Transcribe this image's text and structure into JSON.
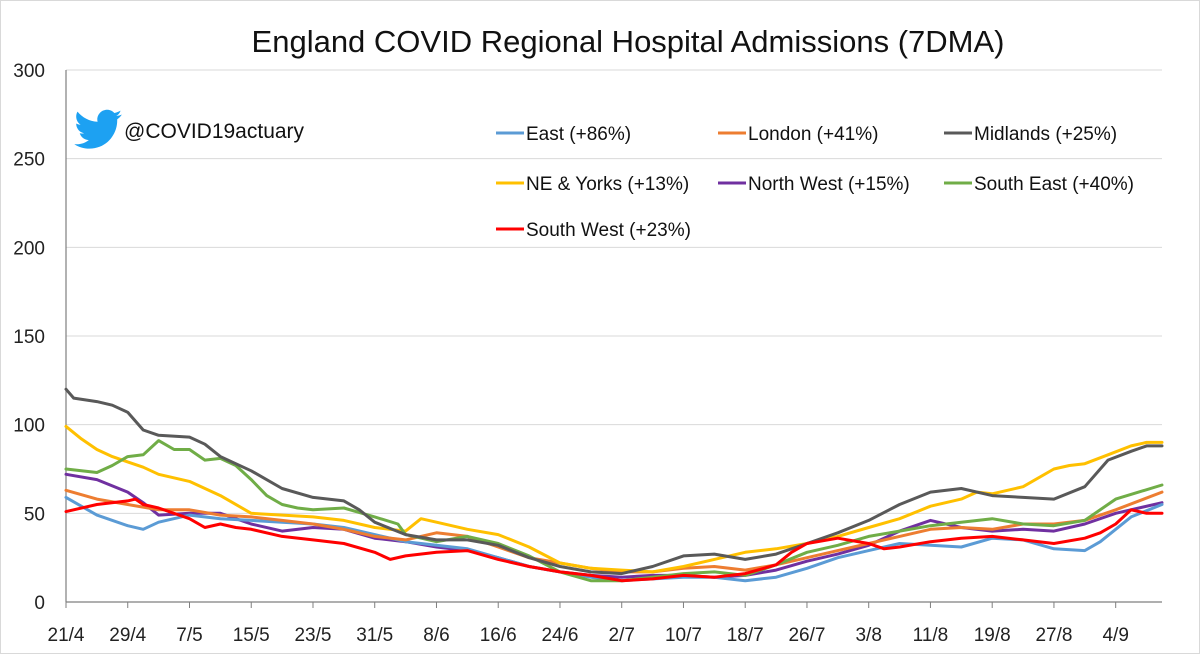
{
  "chart_data": {
    "type": "line",
    "title": "England COVID Regional Hospital Admissions (7DMA)",
    "handle": "@COVID19actuary",
    "icons": {
      "logo": "twitter-bird-icon"
    },
    "xlabel": "",
    "ylabel": "",
    "ylim": [
      0,
      300
    ],
    "yticks": [
      0,
      50,
      100,
      150,
      200,
      250,
      300
    ],
    "grid": true,
    "legend_position": "top-right",
    "x_ticks": [
      "21/4",
      "29/4",
      "7/5",
      "15/5",
      "23/5",
      "31/5",
      "8/6",
      "16/6",
      "24/6",
      "2/7",
      "10/7",
      "18/7",
      "26/7",
      "3/8",
      "11/8",
      "19/8",
      "27/8",
      "4/9"
    ],
    "x_start": "21/4",
    "x_end": "10/9",
    "series": [
      {
        "name": "East (+86%)",
        "color": "#5B9BD5",
        "points": [
          [
            "21/4",
            59
          ],
          [
            "25/4",
            49
          ],
          [
            "29/4",
            43
          ],
          [
            "1/5",
            41
          ],
          [
            "3/5",
            45
          ],
          [
            "7/5",
            49
          ],
          [
            "11/5",
            47
          ],
          [
            "15/5",
            46
          ],
          [
            "19/5",
            45
          ],
          [
            "23/5",
            44
          ],
          [
            "27/5",
            42
          ],
          [
            "31/5",
            38
          ],
          [
            "4/6",
            34
          ],
          [
            "8/6",
            32
          ],
          [
            "12/6",
            30
          ],
          [
            "16/6",
            25
          ],
          [
            "20/6",
            20
          ],
          [
            "24/6",
            17
          ],
          [
            "28/6",
            14
          ],
          [
            "2/7",
            12
          ],
          [
            "6/7",
            13
          ],
          [
            "10/7",
            14
          ],
          [
            "14/7",
            14
          ],
          [
            "18/7",
            12
          ],
          [
            "22/7",
            14
          ],
          [
            "26/7",
            19
          ],
          [
            "30/7",
            25
          ],
          [
            "3/8",
            29
          ],
          [
            "7/8",
            33
          ],
          [
            "11/8",
            32
          ],
          [
            "15/8",
            31
          ],
          [
            "19/8",
            36
          ],
          [
            "23/8",
            35
          ],
          [
            "27/8",
            30
          ],
          [
            "31/8",
            29
          ],
          [
            "2/9",
            34
          ],
          [
            "6/9",
            48
          ],
          [
            "10/9",
            55
          ]
        ]
      },
      {
        "name": "London (+41%)",
        "color": "#ED7D31",
        "points": [
          [
            "21/4",
            63
          ],
          [
            "25/4",
            58
          ],
          [
            "29/4",
            55
          ],
          [
            "3/5",
            52
          ],
          [
            "7/5",
            52
          ],
          [
            "11/5",
            49
          ],
          [
            "15/5",
            48
          ],
          [
            "19/5",
            46
          ],
          [
            "23/5",
            44
          ],
          [
            "27/5",
            41
          ],
          [
            "31/5",
            37
          ],
          [
            "4/6",
            35
          ],
          [
            "8/6",
            39
          ],
          [
            "12/6",
            37
          ],
          [
            "16/6",
            31
          ],
          [
            "20/6",
            25
          ],
          [
            "24/6",
            22
          ],
          [
            "28/6",
            19
          ],
          [
            "2/7",
            17
          ],
          [
            "6/7",
            17
          ],
          [
            "10/7",
            19
          ],
          [
            "14/7",
            20
          ],
          [
            "18/7",
            18
          ],
          [
            "22/7",
            21
          ],
          [
            "26/7",
            25
          ],
          [
            "30/7",
            29
          ],
          [
            "3/8",
            33
          ],
          [
            "7/8",
            37
          ],
          [
            "11/8",
            41
          ],
          [
            "15/8",
            42
          ],
          [
            "19/8",
            41
          ],
          [
            "23/8",
            44
          ],
          [
            "27/8",
            44
          ],
          [
            "31/8",
            46
          ],
          [
            "4/9",
            52
          ],
          [
            "10/9",
            62
          ]
        ]
      },
      {
        "name": "Midlands (+25%)",
        "color": "#595959",
        "points": [
          [
            "21/4",
            120
          ],
          [
            "22/4",
            115
          ],
          [
            "25/4",
            113
          ],
          [
            "27/4",
            111
          ],
          [
            "29/4",
            107
          ],
          [
            "1/5",
            97
          ],
          [
            "3/5",
            94
          ],
          [
            "7/5",
            93
          ],
          [
            "9/5",
            89
          ],
          [
            "11/5",
            82
          ],
          [
            "15/5",
            74
          ],
          [
            "19/5",
            64
          ],
          [
            "23/5",
            59
          ],
          [
            "27/5",
            57
          ],
          [
            "29/5",
            52
          ],
          [
            "31/5",
            45
          ],
          [
            "4/6",
            38
          ],
          [
            "8/6",
            35
          ],
          [
            "12/6",
            35
          ],
          [
            "16/6",
            32
          ],
          [
            "20/6",
            25
          ],
          [
            "24/6",
            20
          ],
          [
            "28/6",
            17
          ],
          [
            "2/7",
            16
          ],
          [
            "6/7",
            20
          ],
          [
            "10/7",
            26
          ],
          [
            "14/7",
            27
          ],
          [
            "18/7",
            24
          ],
          [
            "22/7",
            27
          ],
          [
            "26/7",
            33
          ],
          [
            "30/7",
            39
          ],
          [
            "3/8",
            46
          ],
          [
            "7/8",
            55
          ],
          [
            "11/8",
            62
          ],
          [
            "15/8",
            64
          ],
          [
            "19/8",
            60
          ],
          [
            "23/8",
            59
          ],
          [
            "27/8",
            58
          ],
          [
            "31/8",
            65
          ],
          [
            "3/9",
            80
          ],
          [
            "6/9",
            85
          ],
          [
            "8/9",
            88
          ],
          [
            "10/9",
            88
          ]
        ]
      },
      {
        "name": "NE & Yorks (+13%)",
        "color": "#FFC000",
        "points": [
          [
            "21/4",
            99
          ],
          [
            "23/4",
            92
          ],
          [
            "25/4",
            86
          ],
          [
            "27/4",
            82
          ],
          [
            "29/4",
            79
          ],
          [
            "1/5",
            76
          ],
          [
            "3/5",
            72
          ],
          [
            "7/5",
            68
          ],
          [
            "11/5",
            60
          ],
          [
            "15/5",
            50
          ],
          [
            "19/5",
            49
          ],
          [
            "23/5",
            48
          ],
          [
            "27/5",
            46
          ],
          [
            "31/5",
            42
          ],
          [
            "4/6",
            40
          ],
          [
            "6/6",
            47
          ],
          [
            "8/6",
            45
          ],
          [
            "12/6",
            41
          ],
          [
            "16/6",
            38
          ],
          [
            "20/6",
            31
          ],
          [
            "24/6",
            22
          ],
          [
            "28/6",
            19
          ],
          [
            "2/7",
            18
          ],
          [
            "6/7",
            17
          ],
          [
            "10/7",
            20
          ],
          [
            "14/7",
            24
          ],
          [
            "18/7",
            28
          ],
          [
            "22/7",
            30
          ],
          [
            "26/7",
            33
          ],
          [
            "30/7",
            37
          ],
          [
            "3/8",
            42
          ],
          [
            "7/8",
            47
          ],
          [
            "11/8",
            54
          ],
          [
            "15/8",
            58
          ],
          [
            "17/8",
            62
          ],
          [
            "19/8",
            61
          ],
          [
            "23/8",
            65
          ],
          [
            "27/8",
            75
          ],
          [
            "29/8",
            77
          ],
          [
            "31/8",
            78
          ],
          [
            "3/9",
            83
          ],
          [
            "6/9",
            88
          ],
          [
            "8/9",
            90
          ],
          [
            "10/9",
            90
          ]
        ]
      },
      {
        "name": "North West (+15%)",
        "color": "#7030A0",
        "points": [
          [
            "21/4",
            72
          ],
          [
            "25/4",
            69
          ],
          [
            "29/4",
            62
          ],
          [
            "1/5",
            56
          ],
          [
            "3/5",
            49
          ],
          [
            "7/5",
            50
          ],
          [
            "11/5",
            50
          ],
          [
            "15/5",
            44
          ],
          [
            "19/5",
            40
          ],
          [
            "23/5",
            42
          ],
          [
            "27/5",
            41
          ],
          [
            "31/5",
            36
          ],
          [
            "4/6",
            34
          ],
          [
            "8/6",
            31
          ],
          [
            "12/6",
            29
          ],
          [
            "16/6",
            25
          ],
          [
            "20/6",
            20
          ],
          [
            "24/6",
            17
          ],
          [
            "28/6",
            15
          ],
          [
            "2/7",
            14
          ],
          [
            "6/7",
            15
          ],
          [
            "10/7",
            15
          ],
          [
            "14/7",
            14
          ],
          [
            "18/7",
            15
          ],
          [
            "22/7",
            18
          ],
          [
            "26/7",
            23
          ],
          [
            "30/7",
            27
          ],
          [
            "3/8",
            32
          ],
          [
            "7/8",
            40
          ],
          [
            "11/8",
            46
          ],
          [
            "15/8",
            42
          ],
          [
            "19/8",
            40
          ],
          [
            "23/8",
            41
          ],
          [
            "27/8",
            40
          ],
          [
            "31/8",
            44
          ],
          [
            "4/9",
            50
          ],
          [
            "10/9",
            56
          ]
        ]
      },
      {
        "name": "South East (+40%)",
        "color": "#70AD47",
        "points": [
          [
            "21/4",
            75
          ],
          [
            "25/4",
            73
          ],
          [
            "27/4",
            77
          ],
          [
            "29/4",
            82
          ],
          [
            "1/5",
            83
          ],
          [
            "3/5",
            91
          ],
          [
            "5/5",
            86
          ],
          [
            "7/5",
            86
          ],
          [
            "9/5",
            80
          ],
          [
            "11/5",
            81
          ],
          [
            "13/5",
            77
          ],
          [
            "15/5",
            69
          ],
          [
            "17/5",
            60
          ],
          [
            "19/5",
            55
          ],
          [
            "21/5",
            53
          ],
          [
            "23/5",
            52
          ],
          [
            "27/5",
            53
          ],
          [
            "31/5",
            48
          ],
          [
            "3/6",
            44
          ],
          [
            "4/6",
            38
          ],
          [
            "8/6",
            34
          ],
          [
            "12/6",
            37
          ],
          [
            "16/6",
            33
          ],
          [
            "20/6",
            26
          ],
          [
            "24/6",
            17
          ],
          [
            "28/6",
            12
          ],
          [
            "2/7",
            12
          ],
          [
            "6/7",
            14
          ],
          [
            "10/7",
            16
          ],
          [
            "14/7",
            17
          ],
          [
            "18/7",
            15
          ],
          [
            "22/7",
            21
          ],
          [
            "26/7",
            28
          ],
          [
            "30/7",
            32
          ],
          [
            "3/8",
            37
          ],
          [
            "7/8",
            40
          ],
          [
            "11/8",
            43
          ],
          [
            "15/8",
            45
          ],
          [
            "19/8",
            47
          ],
          [
            "23/8",
            44
          ],
          [
            "27/8",
            43
          ],
          [
            "31/8",
            46
          ],
          [
            "4/9",
            58
          ],
          [
            "10/9",
            66
          ]
        ]
      },
      {
        "name": "South West (+23%)",
        "color": "#FF0000",
        "points": [
          [
            "21/4",
            51
          ],
          [
            "25/4",
            55
          ],
          [
            "29/4",
            57
          ],
          [
            "30/4",
            58
          ],
          [
            "1/5",
            55
          ],
          [
            "3/5",
            53
          ],
          [
            "7/5",
            47
          ],
          [
            "9/5",
            42
          ],
          [
            "11/5",
            44
          ],
          [
            "13/5",
            42
          ],
          [
            "15/5",
            41
          ],
          [
            "19/5",
            37
          ],
          [
            "23/5",
            35
          ],
          [
            "27/5",
            33
          ],
          [
            "31/5",
            28
          ],
          [
            "2/6",
            24
          ],
          [
            "4/6",
            26
          ],
          [
            "8/6",
            28
          ],
          [
            "12/6",
            29
          ],
          [
            "16/6",
            24
          ],
          [
            "20/6",
            20
          ],
          [
            "24/6",
            17
          ],
          [
            "28/6",
            15
          ],
          [
            "2/7",
            12
          ],
          [
            "6/7",
            13
          ],
          [
            "10/7",
            15
          ],
          [
            "14/7",
            14
          ],
          [
            "18/7",
            16
          ],
          [
            "22/7",
            21
          ],
          [
            "24/7",
            28
          ],
          [
            "26/7",
            33
          ],
          [
            "30/7",
            36
          ],
          [
            "3/8",
            33
          ],
          [
            "5/8",
            30
          ],
          [
            "7/8",
            31
          ],
          [
            "11/8",
            34
          ],
          [
            "15/8",
            36
          ],
          [
            "19/8",
            37
          ],
          [
            "23/8",
            35
          ],
          [
            "27/8",
            33
          ],
          [
            "31/8",
            36
          ],
          [
            "2/9",
            39
          ],
          [
            "4/9",
            44
          ],
          [
            "6/9",
            52
          ],
          [
            "8/9",
            50
          ],
          [
            "10/9",
            50
          ]
        ]
      }
    ]
  }
}
